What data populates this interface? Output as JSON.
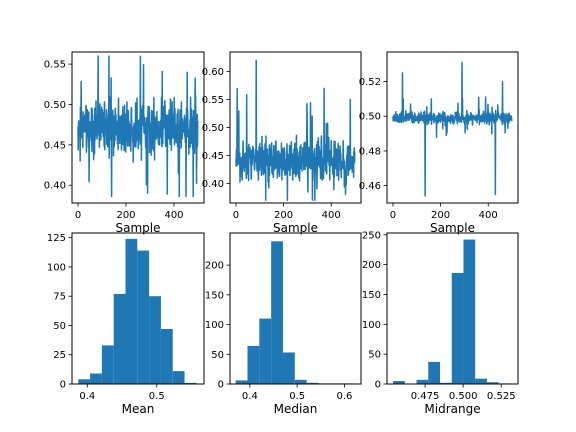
{
  "colors": {
    "series": "#1f77b4",
    "axes": "#000000",
    "background": "#ffffff"
  },
  "chart_data": [
    {
      "type": "line",
      "position": "top-left",
      "xlabel": "Sample",
      "ylabel": "",
      "xlim": [
        -25,
        525
      ],
      "ylim": [
        0.378,
        0.565
      ],
      "xticks": [
        0,
        200,
        400
      ],
      "yticks": [
        0.4,
        0.45,
        0.5,
        0.55
      ],
      "ytick_labels": [
        "0.40",
        "0.45",
        "0.50",
        "0.55"
      ],
      "grid": false,
      "n_points": 500,
      "center": 0.472,
      "spread": 0.055,
      "yrange_observed": [
        0.386,
        0.56
      ],
      "notable_points": [
        [
          9,
          0.43
        ],
        [
          84,
          0.56
        ],
        [
          140,
          0.386
        ],
        [
          290,
          0.39
        ],
        [
          455,
          0.54
        ]
      ]
    },
    {
      "type": "line",
      "position": "top-middle",
      "xlabel": "Sample",
      "ylabel": "",
      "xlim": [
        -25,
        525
      ],
      "ylim": [
        0.365,
        0.635
      ],
      "xticks": [
        0,
        200,
        400
      ],
      "yticks": [
        0.4,
        0.45,
        0.5,
        0.55,
        0.6
      ],
      "ytick_labels": [
        "0.40",
        "0.45",
        "0.50",
        "0.55",
        "0.60"
      ],
      "grid": false,
      "n_points": 500,
      "center": 0.44,
      "spread": 0.065,
      "yrange_observed": [
        0.37,
        0.62
      ],
      "notable_points": [
        [
          85,
          0.62
        ],
        [
          370,
          0.57
        ],
        [
          480,
          0.55
        ],
        [
          460,
          0.38
        ]
      ]
    },
    {
      "type": "line",
      "position": "top-right",
      "xlabel": "Sample",
      "ylabel": "",
      "xlim": [
        -25,
        525
      ],
      "ylim": [
        0.45,
        0.537
      ],
      "xticks": [
        0,
        200,
        400
      ],
      "yticks": [
        0.46,
        0.48,
        0.5,
        0.52
      ],
      "ytick_labels": [
        "0.46",
        "0.48",
        "0.50",
        "0.52"
      ],
      "grid": false,
      "n_points": 500,
      "center": 0.499,
      "spread": 0.006,
      "yrange_observed": [
        0.454,
        0.531
      ],
      "notable_points": [
        [
          40,
          0.525
        ],
        [
          135,
          0.454
        ],
        [
          290,
          0.531
        ],
        [
          430,
          0.455
        ],
        [
          460,
          0.52
        ]
      ]
    },
    {
      "type": "bar",
      "position": "bottom-left",
      "xlabel": "Mean",
      "ylabel": "",
      "xlim": [
        0.378,
        0.568
      ],
      "ylim": [
        0,
        129
      ],
      "xticks": [
        0.4,
        0.5
      ],
      "xtick_labels": [
        "0.4",
        "0.5"
      ],
      "yticks": [
        0,
        25,
        50,
        75,
        100,
        125
      ],
      "grid": false,
      "bin_edges": [
        0.387,
        0.404,
        0.421,
        0.438,
        0.455,
        0.472,
        0.489,
        0.506,
        0.523,
        0.54,
        0.557
      ],
      "counts": [
        4,
        9,
        33,
        77,
        124,
        114,
        75,
        47,
        11,
        1
      ]
    },
    {
      "type": "bar",
      "position": "bottom-middle",
      "xlabel": "Median",
      "ylabel": "",
      "xlim": [
        0.358,
        0.635
      ],
      "ylim": [
        0,
        254
      ],
      "xticks": [
        0.4,
        0.5,
        0.6
      ],
      "xtick_labels": [
        "0.4",
        "0.5",
        "0.6"
      ],
      "yticks": [
        0,
        50,
        100,
        150,
        200
      ],
      "grid": false,
      "bin_edges": [
        0.37,
        0.395,
        0.42,
        0.445,
        0.47,
        0.495,
        0.52,
        0.545,
        0.57,
        0.595,
        0.62
      ],
      "counts": [
        6,
        64,
        110,
        240,
        53,
        7,
        2,
        1,
        1,
        1
      ]
    },
    {
      "type": "bar",
      "position": "bottom-right",
      "xlabel": "Midrange",
      "ylabel": "",
      "xlim": [
        0.45,
        0.536
      ],
      "ylim": [
        0,
        253
      ],
      "xticks": [
        0.475,
        0.5,
        0.525
      ],
      "xtick_labels": [
        "0.475",
        "0.500",
        "0.525"
      ],
      "yticks": [
        0,
        50,
        100,
        150,
        200,
        250
      ],
      "grid": false,
      "bin_edges": [
        0.454,
        0.4617,
        0.4694,
        0.4771,
        0.4848,
        0.4925,
        0.5002,
        0.5079,
        0.5156,
        0.5233,
        0.531
      ],
      "counts": [
        5,
        0,
        7,
        37,
        2,
        186,
        242,
        9,
        3,
        1
      ]
    }
  ]
}
